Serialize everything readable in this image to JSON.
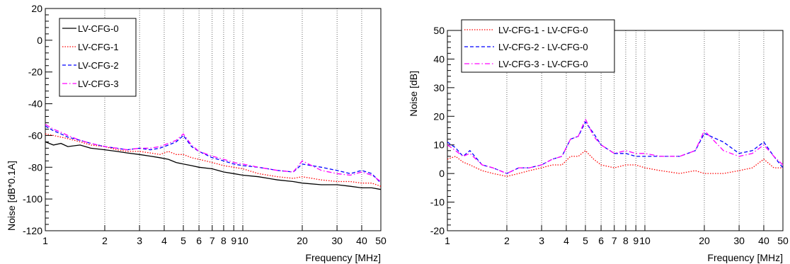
{
  "chart_data": [
    {
      "type": "line",
      "xlabel": "Frequency [MHz]",
      "ylabel": "Noise [dB*0.1A]",
      "xscale": "log",
      "xlim": [
        1,
        50
      ],
      "ylim": [
        -120,
        20
      ],
      "grid": "vertical dotted lines at x tick positions",
      "legend_position": "top-left",
      "x_ticks": [
        1,
        2,
        3,
        4,
        5,
        6,
        7,
        8,
        9,
        10,
        20,
        30,
        40,
        50
      ],
      "x_tick_labels": [
        "1",
        "2",
        "3",
        "4",
        "5",
        "6",
        "7",
        "8",
        "9",
        "10",
        "20",
        "30",
        "40",
        "50"
      ],
      "y_ticks": [
        -120,
        -100,
        -80,
        -60,
        -40,
        -20,
        0,
        20
      ],
      "y_tick_labels": [
        "-120",
        "-100",
        "-80",
        "-60",
        "-40",
        "-20",
        "0",
        "20"
      ],
      "series": [
        {
          "name": "LV-CFG-0",
          "color": "#000000",
          "dash": "solid",
          "x": [
            1.0,
            1.1,
            1.2,
            1.3,
            1.5,
            1.7,
            2.0,
            2.3,
            2.6,
            3.0,
            3.4,
            3.8,
            4.2,
            4.6,
            5.0,
            5.5,
            6.0,
            7.0,
            8.0,
            9.0,
            10.0,
            12.0,
            15.0,
            18.0,
            20.0,
            25.0,
            30.0,
            35.0,
            40.0,
            45.0,
            50.0
          ],
          "y": [
            -64,
            -66,
            -65,
            -67,
            -66,
            -68,
            -69,
            -70,
            -71,
            -72,
            -73,
            -74,
            -75,
            -77,
            -78,
            -79,
            -80,
            -81,
            -83,
            -84,
            -85,
            -86,
            -88,
            -89,
            -90,
            -91,
            -91,
            -92,
            -93,
            -93,
            -94
          ]
        },
        {
          "name": "LV-CFG-1",
          "color": "#ff0000",
          "dash": "dotted",
          "x": [
            1.0,
            1.1,
            1.2,
            1.3,
            1.5,
            1.7,
            2.0,
            2.3,
            2.6,
            3.0,
            3.4,
            3.8,
            4.2,
            4.6,
            5.0,
            5.5,
            6.0,
            7.0,
            8.0,
            9.0,
            10.0,
            12.0,
            15.0,
            18.0,
            20.0,
            25.0,
            30.0,
            35.0,
            40.0,
            45.0,
            50.0
          ],
          "y": [
            -59,
            -60,
            -61,
            -62,
            -64,
            -66,
            -67,
            -69,
            -70,
            -70,
            -71,
            -72,
            -70,
            -72,
            -72,
            -74,
            -75,
            -77,
            -79,
            -80,
            -81,
            -84,
            -86,
            -87,
            -86,
            -88,
            -89,
            -89,
            -90,
            -90,
            -92
          ]
        },
        {
          "name": "LV-CFG-2",
          "color": "#0000ff",
          "dash": "dashed",
          "x": [
            1.0,
            1.1,
            1.2,
            1.3,
            1.5,
            1.7,
            2.0,
            2.3,
            2.6,
            3.0,
            3.4,
            3.8,
            4.2,
            4.6,
            5.0,
            5.5,
            6.0,
            7.0,
            8.0,
            9.0,
            10.0,
            12.0,
            15.0,
            18.0,
            20.0,
            25.0,
            30.0,
            35.0,
            40.0,
            45.0,
            50.0
          ],
          "y": [
            -54,
            -57,
            -59,
            -61,
            -63,
            -65,
            -67,
            -68,
            -69,
            -68,
            -69,
            -68,
            -66,
            -64,
            -60,
            -67,
            -70,
            -74,
            -76,
            -78,
            -79,
            -80,
            -82,
            -83,
            -78,
            -80,
            -82,
            -84,
            -82,
            -84,
            -90
          ]
        },
        {
          "name": "LV-CFG-3",
          "color": "#ff00ff",
          "dash": "dashdot",
          "x": [
            1.0,
            1.1,
            1.2,
            1.3,
            1.5,
            1.7,
            2.0,
            2.3,
            2.6,
            3.0,
            3.4,
            3.8,
            4.2,
            4.6,
            5.0,
            5.5,
            6.0,
            7.0,
            8.0,
            9.0,
            10.0,
            12.0,
            15.0,
            18.0,
            20.0,
            25.0,
            30.0,
            35.0,
            40.0,
            45.0,
            50.0
          ],
          "y": [
            -53,
            -56,
            -58,
            -60,
            -63,
            -65,
            -67,
            -68,
            -69,
            -68,
            -68,
            -67,
            -65,
            -63,
            -59,
            -66,
            -70,
            -73,
            -75,
            -77,
            -78,
            -80,
            -82,
            -83,
            -76,
            -82,
            -84,
            -85,
            -83,
            -85,
            -89
          ]
        }
      ]
    },
    {
      "type": "line",
      "xlabel": "Frequency [MHz]",
      "ylabel": "Noise [dB]",
      "xscale": "log",
      "xlim": [
        1,
        50
      ],
      "ylim": [
        -20,
        50
      ],
      "grid": "vertical dotted lines at x tick positions",
      "legend_position": "top-left",
      "x_ticks": [
        1,
        2,
        3,
        4,
        5,
        6,
        7,
        8,
        9,
        10,
        20,
        30,
        40,
        50
      ],
      "x_tick_labels": [
        "1",
        "2",
        "3",
        "4",
        "5",
        "6",
        "7",
        "8",
        "9",
        "10",
        "20",
        "30",
        "40",
        "50"
      ],
      "y_ticks": [
        -20,
        -10,
        0,
        10,
        20,
        30,
        40,
        50
      ],
      "y_tick_labels": [
        "-20",
        "-10",
        "0",
        "10",
        "20",
        "30",
        "40",
        "50"
      ],
      "series": [
        {
          "name": "LV-CFG-1 - LV-CFG-0",
          "color": "#ff0000",
          "dash": "dotted",
          "x": [
            1.0,
            1.1,
            1.2,
            1.3,
            1.5,
            1.7,
            2.0,
            2.3,
            2.6,
            3.0,
            3.4,
            3.8,
            4.2,
            4.6,
            5.0,
            5.5,
            6.0,
            7.0,
            8.0,
            9.0,
            10.0,
            12.0,
            15.0,
            18.0,
            20.0,
            25.0,
            30.0,
            35.0,
            40.0,
            45.0,
            50.0
          ],
          "y": [
            5,
            6,
            4,
            3,
            1,
            0,
            -1,
            0,
            1,
            2,
            3,
            3,
            6,
            6,
            8,
            5,
            3,
            2,
            3,
            3,
            2,
            1,
            0,
            1,
            0,
            0,
            1,
            2,
            5,
            2,
            2
          ]
        },
        {
          "name": "LV-CFG-2 - LV-CFG-0",
          "color": "#0000ff",
          "dash": "dashed",
          "x": [
            1.0,
            1.1,
            1.2,
            1.3,
            1.5,
            1.7,
            2.0,
            2.3,
            2.6,
            3.0,
            3.4,
            3.8,
            4.2,
            4.6,
            5.0,
            5.5,
            6.0,
            7.0,
            8.0,
            9.0,
            10.0,
            12.0,
            15.0,
            18.0,
            20.0,
            25.0,
            30.0,
            35.0,
            40.0,
            45.0,
            50.0
          ],
          "y": [
            11,
            9,
            6,
            8,
            3,
            2,
            0,
            2,
            2,
            3,
            5,
            6,
            12,
            13,
            18,
            14,
            10,
            7,
            7,
            6,
            6,
            6,
            6,
            8,
            14,
            11,
            7,
            8,
            11,
            6,
            2
          ]
        },
        {
          "name": "LV-CFG-3 - LV-CFG-0",
          "color": "#ff00ff",
          "dash": "dashdot",
          "x": [
            1.0,
            1.1,
            1.2,
            1.3,
            1.5,
            1.7,
            2.0,
            2.3,
            2.6,
            3.0,
            3.4,
            3.8,
            4.2,
            4.6,
            5.0,
            5.5,
            6.0,
            7.0,
            8.0,
            9.0,
            10.0,
            12.0,
            15.0,
            18.0,
            20.0,
            25.0,
            30.0,
            35.0,
            40.0,
            45.0,
            50.0
          ],
          "y": [
            10,
            8,
            6,
            7,
            3,
            2,
            0,
            2,
            2,
            3,
            5,
            6,
            12,
            13,
            19,
            13,
            10,
            7,
            8,
            7,
            7,
            6,
            6,
            8,
            15,
            8,
            6,
            7,
            10,
            6,
            3
          ]
        }
      ]
    }
  ]
}
